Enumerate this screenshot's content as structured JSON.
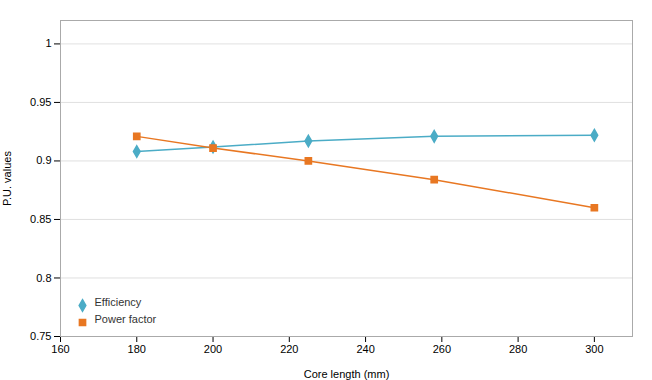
{
  "chart_data": {
    "type": "line",
    "x": [
      180,
      200,
      225,
      258,
      300
    ],
    "series": [
      {
        "name": "Efficiency",
        "color": "#4BACC6",
        "marker": "diamond",
        "values": [
          0.908,
          0.912,
          0.917,
          0.921,
          0.922
        ]
      },
      {
        "name": "Power factor",
        "color": "#E87722",
        "marker": "square",
        "values": [
          0.921,
          0.911,
          0.9,
          0.884,
          0.86
        ]
      }
    ],
    "x_label": "Core length (mm)",
    "y_label": "P.U. values",
    "xlim": [
      160,
      310
    ],
    "ylim": [
      0.75,
      1.02
    ],
    "xticks": [
      160,
      180,
      200,
      220,
      240,
      260,
      280,
      300
    ],
    "yticks": [
      0.75,
      0.8,
      0.85,
      0.9,
      0.95,
      1
    ],
    "grid": true,
    "legend": "lower left"
  }
}
